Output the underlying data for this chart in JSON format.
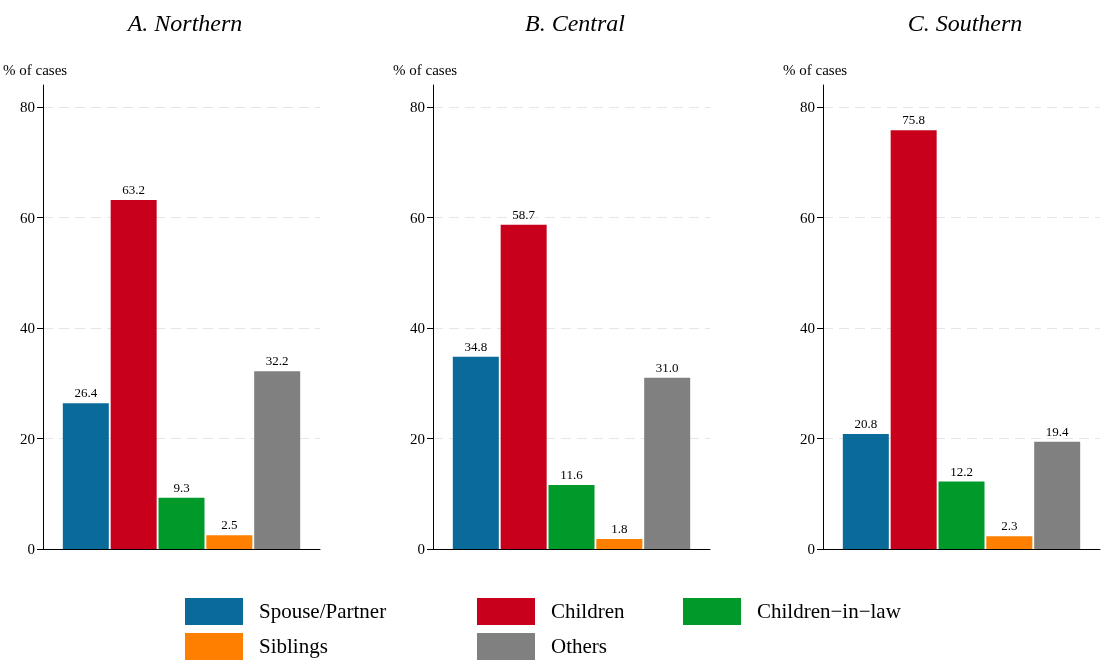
{
  "chart_data": [
    {
      "type": "bar",
      "title": "A. Northern",
      "ylabel": "% of cases",
      "categories": [
        null
      ],
      "ylim": [
        0,
        84
      ],
      "yticks": [
        0,
        20,
        40,
        60,
        80
      ],
      "grid": "y",
      "legend": "bottom",
      "series": [
        {
          "name": "Spouse/Partner",
          "color": "#0a6a9a",
          "values": [
            26.4
          ],
          "value_labels": [
            "26.4"
          ]
        },
        {
          "name": "Children",
          "color": "#c8001b",
          "values": [
            63.2
          ],
          "value_labels": [
            "63.2"
          ]
        },
        {
          "name": "Children−in−law",
          "color": "#009a2a",
          "values": [
            9.3
          ],
          "value_labels": [
            "9.3"
          ]
        },
        {
          "name": "Siblings",
          "color": "#ff8000",
          "values": [
            2.5
          ],
          "value_labels": [
            "2.5"
          ]
        },
        {
          "name": "Others",
          "color": "#808080",
          "values": [
            32.2
          ],
          "value_labels": [
            "32.2"
          ]
        }
      ]
    },
    {
      "type": "bar",
      "title": "B. Central",
      "ylabel": "% of cases",
      "categories": [
        null
      ],
      "ylim": [
        0,
        84
      ],
      "yticks": [
        0,
        20,
        40,
        60,
        80
      ],
      "grid": "y",
      "series": [
        {
          "color": "#0a6a9a",
          "values": [
            34.8
          ],
          "value_labels": [
            "34.8"
          ]
        },
        {
          "color": "#c8001b",
          "values": [
            58.7
          ],
          "value_labels": [
            "58.7"
          ]
        },
        {
          "color": "#009a2a",
          "values": [
            11.6
          ],
          "value_labels": [
            "11.6"
          ]
        },
        {
          "color": "#ff8000",
          "values": [
            1.8
          ],
          "value_labels": [
            "1.8"
          ]
        },
        {
          "color": "#808080",
          "values": [
            31.0
          ],
          "value_labels": [
            "31.0"
          ]
        }
      ]
    },
    {
      "type": "bar",
      "title": "C. Southern",
      "ylabel": "% of cases",
      "categories": [
        null
      ],
      "ylim": [
        0,
        84
      ],
      "yticks": [
        0,
        20,
        40,
        60,
        80
      ],
      "grid": "y",
      "series": [
        {
          "color": "#0a6a9a",
          "values": [
            20.8
          ],
          "value_labels": [
            "20.8"
          ]
        },
        {
          "color": "#c8001b",
          "values": [
            75.8
          ],
          "value_labels": [
            "75.8"
          ]
        },
        {
          "color": "#009a2a",
          "values": [
            12.2
          ],
          "value_labels": [
            "12.2"
          ]
        },
        {
          "color": "#ff8000",
          "values": [
            2.3
          ],
          "value_labels": [
            "2.3"
          ]
        },
        {
          "color": "#808080",
          "values": [
            19.4
          ],
          "value_labels": [
            "19.4"
          ]
        }
      ]
    }
  ]
}
